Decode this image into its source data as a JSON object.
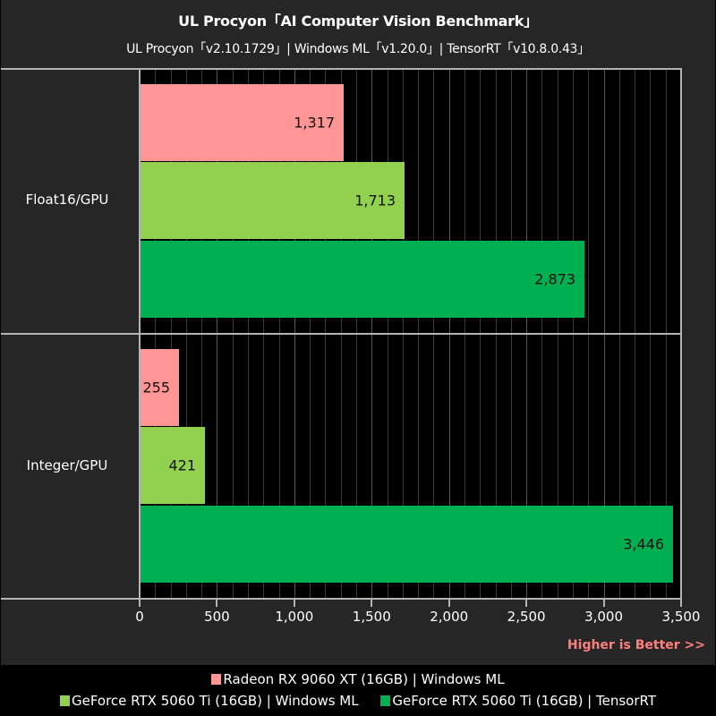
{
  "header": {
    "title": "UL Procyon「AI Computer Vision Benchmark」",
    "subtitle": "UL Procyon「v2.10.1729」| Windows ML「v1.20.0」| TensorRT「v10.8.0.43」"
  },
  "colors": {
    "radeon_windowsml": "#ff9595",
    "geforce_windowsml": "#92d050",
    "geforce_tensorrt": "#00b050",
    "background": "#262626",
    "plot_background": "#000000",
    "higher_is_better": "#ff7f7f"
  },
  "note": "Higher is Better >>",
  "legend": [
    {
      "label": "Radeon RX 9060 XT (16GB) | Windows ML",
      "color": "#ff9595"
    },
    {
      "label": "GeForce RTX 5060 Ti (16GB) | Windows ML",
      "color": "#92d050"
    },
    {
      "label": "GeForce RTX 5060 Ti (16GB) | TensorRT",
      "color": "#00b050"
    }
  ],
  "axis": {
    "ticks": [
      "0",
      "500",
      "1,000",
      "1,500",
      "2,000",
      "2,500",
      "3,000",
      "3,500"
    ]
  },
  "groups": [
    {
      "label": "Float16/GPU",
      "bars": [
        {
          "value_label": "1,317"
        },
        {
          "value_label": "1,713"
        },
        {
          "value_label": "2,873"
        }
      ]
    },
    {
      "label": "Integer/GPU",
      "bars": [
        {
          "value_label": "255"
        },
        {
          "value_label": "421"
        },
        {
          "value_label": "3,446"
        }
      ]
    }
  ],
  "chart_data": {
    "type": "bar",
    "orientation": "horizontal",
    "title": "UL Procyon「AI Computer Vision Benchmark」",
    "subtitle": "UL Procyon「v2.10.1729」| Windows ML「v1.20.0」| TensorRT「v10.8.0.43」",
    "categories": [
      "Float16/GPU",
      "Integer/GPU"
    ],
    "series": [
      {
        "name": "Radeon RX 9060 XT (16GB) | Windows ML",
        "color": "#ff9595",
        "values": [
          1317,
          255
        ]
      },
      {
        "name": "GeForce RTX 5060 Ti (16GB) | Windows ML",
        "color": "#92d050",
        "values": [
          1713,
          421
        ]
      },
      {
        "name": "GeForce RTX 5060 Ti (16GB) | TensorRT",
        "color": "#00b050",
        "values": [
          2873,
          3446
        ]
      }
    ],
    "xlabel": "",
    "ylabel": "",
    "xlim": [
      0,
      3500
    ],
    "xticks": [
      0,
      500,
      1000,
      1500,
      2000,
      2500,
      3000,
      3500
    ],
    "grid": true,
    "legend_position": "bottom",
    "annotations": [
      "Higher is Better >>"
    ]
  }
}
